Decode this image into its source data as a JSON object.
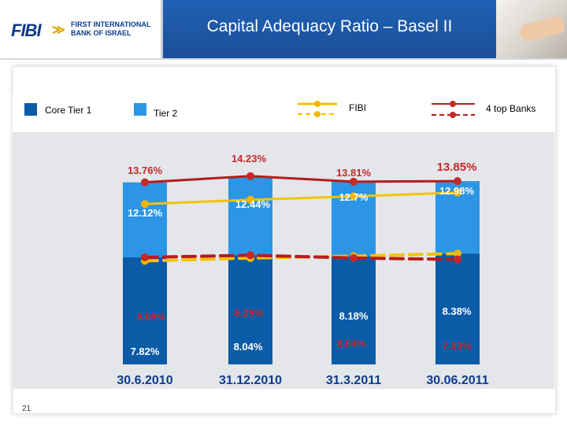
{
  "header": {
    "logo_mark": "FIBI",
    "logo_line1": "FIRST INTERNATIONAL",
    "logo_line2": "BANK OF ISRAEL",
    "title": "Capital Adequacy Ratio – Basel II"
  },
  "legend": {
    "core_tier1": "Core Tier  1",
    "tier2": "Tier  2",
    "fibi": "FIBI",
    "top_banks": "4 top Banks"
  },
  "colors": {
    "core_tier1": "#0c5ba6",
    "tier2": "#2d95e6",
    "fibi_line": "#f2c300",
    "top_banks_line": "#b71c1c",
    "marker_red": "#c62828",
    "marker_gold": "#f2b600"
  },
  "page_number": "21",
  "chart_data": {
    "type": "bar",
    "categories": [
      "30.6.2010",
      "31.12.2010",
      "31.3.2011",
      "30.06.2011"
    ],
    "series": [
      {
        "name": "Core Tier  1",
        "kind": "bar",
        "stack": "capital",
        "values": [
          8.09,
          8.25,
          8.18,
          8.38
        ]
      },
      {
        "name": "Tier  2",
        "kind": "bar",
        "stack": "capital",
        "values": [
          5.67,
          5.98,
          5.63,
          5.47
        ]
      },
      {
        "name": "4 top Banks",
        "kind": "line",
        "style": "solid",
        "values": [
          13.76,
          14.23,
          13.81,
          13.85
        ]
      },
      {
        "name": "FIBI",
        "kind": "line",
        "style": "solid",
        "values": [
          12.12,
          12.44,
          12.7,
          12.98
        ]
      },
      {
        "name": "FIBI",
        "kind": "line",
        "style": "dashed",
        "values": [
          7.82,
          8.04,
          8.18,
          8.38
        ]
      },
      {
        "name": "4 top Banks",
        "kind": "line",
        "style": "dashed",
        "values": [
          8.09,
          8.25,
          8.04,
          7.93
        ]
      }
    ],
    "labels": {
      "top_banks_total": [
        "13.76%",
        "14.23%",
        "13.81%",
        "13.85%"
      ],
      "fibi_total": [
        "12.12%",
        "12.44%",
        "12.7%",
        "12.98%"
      ],
      "top_banks_core": [
        "8.09%",
        "8.25%",
        "8.04%",
        "7.93%"
      ],
      "fibi_core": [
        "7.82%",
        "8.04%",
        "8.18%",
        "8.38%"
      ]
    },
    "ylim": [
      0,
      16
    ],
    "title": "",
    "xlabel": "",
    "ylabel": "",
    "grid": false,
    "legend_position": "top"
  }
}
